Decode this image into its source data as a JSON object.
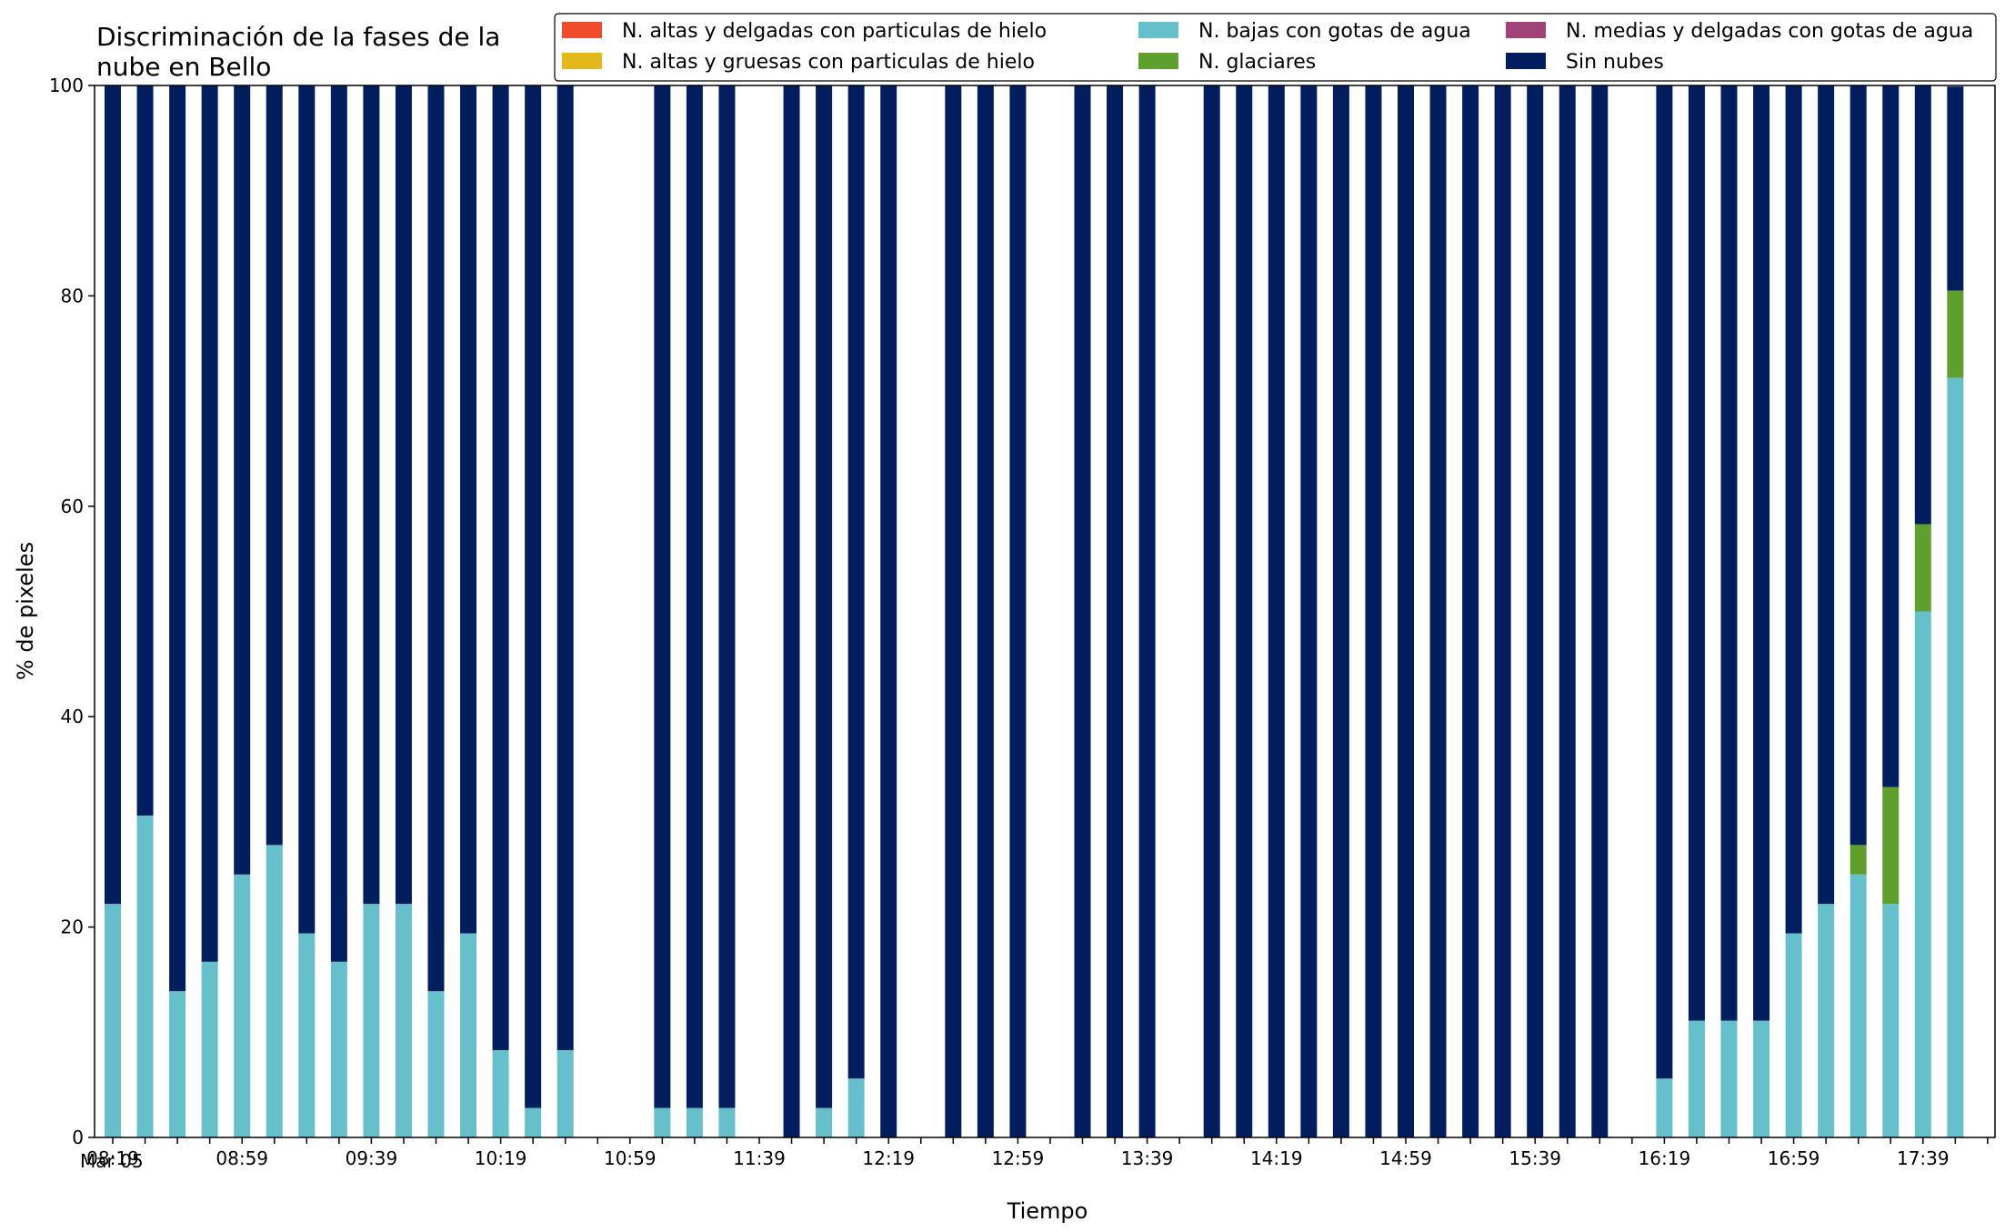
{
  "chart_data": {
    "type": "bar",
    "stacked": true,
    "title_line1": "Discriminación de la fases de la",
    "title_line2": "nube en Bello",
    "xlabel": "Tiempo",
    "ylabel": "% de pixeles",
    "ylim": [
      0,
      100
    ],
    "yticks": [
      0,
      20,
      40,
      60,
      80,
      100
    ],
    "x_start": "08:19",
    "x_step_minutes": 10,
    "date_label": "Mar 05",
    "x_tick_labels": [
      "08:19",
      "08:59",
      "09:39",
      "10:19",
      "10:59",
      "11:39",
      "12:19",
      "12:59",
      "13:39",
      "14:19",
      "14:59",
      "15:39",
      "16:19",
      "16:59",
      "17:39"
    ],
    "x": [
      "08:19",
      "08:29",
      "08:39",
      "08:49",
      "08:59",
      "09:09",
      "09:19",
      "09:29",
      "09:39",
      "09:49",
      "09:59",
      "10:09",
      "10:19",
      "10:29",
      "10:39",
      "10:49",
      "10:59",
      "11:09",
      "11:19",
      "11:29",
      "11:39",
      "11:49",
      "11:59",
      "12:09",
      "12:19",
      "12:29",
      "12:39",
      "12:49",
      "12:59",
      "13:09",
      "13:19",
      "13:29",
      "13:39",
      "13:49",
      "13:59",
      "14:09",
      "14:19",
      "14:29",
      "14:39",
      "14:49",
      "14:59",
      "15:09",
      "15:19",
      "15:29",
      "15:39",
      "15:49",
      "15:59",
      "16:09",
      "16:19",
      "16:29",
      "16:39",
      "16:49",
      "16:59",
      "17:09",
      "17:19",
      "17:29",
      "17:39",
      "17:49"
    ],
    "series": [
      {
        "name": "N. altas y delgadas con particulas de hielo",
        "color": "#ee4c2c",
        "values": [
          0,
          0,
          0,
          0,
          0,
          0,
          0,
          0,
          0,
          0,
          0,
          0,
          0,
          0,
          0,
          null,
          null,
          0,
          0,
          0,
          null,
          0,
          0,
          0,
          0,
          null,
          0,
          0,
          0,
          null,
          0,
          0,
          0,
          null,
          0,
          0,
          0,
          0,
          0,
          0,
          0,
          0,
          0,
          0,
          0,
          0,
          0,
          null,
          0,
          0,
          0,
          0,
          0,
          0,
          0,
          0,
          0,
          0
        ]
      },
      {
        "name": "N. altas y gruesas con particulas de hielo",
        "color": "#e5b81a",
        "values": [
          0,
          0,
          0,
          0,
          0,
          0,
          0,
          0,
          0,
          0,
          0,
          0,
          0,
          0,
          0,
          null,
          null,
          0,
          0,
          0,
          null,
          0,
          0,
          0,
          0,
          null,
          0,
          0,
          0,
          null,
          0,
          0,
          0,
          null,
          0,
          0,
          0,
          0,
          0,
          0,
          0,
          0,
          0,
          0,
          0,
          0,
          0,
          null,
          0,
          0,
          0,
          0,
          0,
          0,
          0,
          0,
          0,
          0
        ]
      },
      {
        "name": "N. bajas con gotas de agua",
        "color": "#66c0cb",
        "values": [
          22.2,
          30.6,
          13.9,
          16.7,
          25.0,
          27.8,
          19.4,
          16.7,
          22.2,
          22.2,
          13.9,
          19.4,
          8.3,
          2.8,
          8.3,
          null,
          null,
          2.8,
          2.8,
          2.8,
          null,
          0,
          2.8,
          5.6,
          0,
          null,
          0,
          0,
          0,
          null,
          0,
          0,
          0,
          null,
          0,
          0,
          0,
          0,
          0,
          0,
          0,
          0,
          0,
          0,
          0,
          0,
          0,
          null,
          5.6,
          11.1,
          11.1,
          11.1,
          19.4,
          22.2,
          25.0,
          22.2,
          50.0,
          72.2
        ]
      },
      {
        "name": "N. glaciares",
        "color": "#5f9f2e",
        "values": [
          0,
          0,
          0,
          0,
          0,
          0,
          0,
          0,
          0,
          0,
          0,
          0,
          0,
          0,
          0,
          null,
          null,
          0,
          0,
          0,
          null,
          0,
          0,
          0,
          0,
          null,
          0,
          0,
          0,
          null,
          0,
          0,
          0,
          null,
          0,
          0,
          0,
          0,
          0,
          0,
          0,
          0,
          0,
          0,
          0,
          0,
          0,
          null,
          0,
          0,
          0,
          0,
          0,
          0,
          2.8,
          11.1,
          8.3,
          8.3
        ]
      },
      {
        "name": "N. medias y delgadas con gotas de agua",
        "color": "#a2427b",
        "values": [
          0,
          0,
          0,
          0,
          0,
          0,
          0,
          0,
          0,
          0,
          0,
          0,
          0,
          0,
          0,
          null,
          null,
          0,
          0,
          0,
          null,
          0,
          0,
          0,
          0,
          null,
          0,
          0,
          0,
          null,
          0,
          0,
          0,
          null,
          0,
          0,
          0,
          0,
          0,
          0,
          0,
          0,
          0,
          0,
          0,
          0,
          0,
          null,
          0,
          0,
          0,
          0,
          0,
          0,
          0,
          0,
          0,
          0
        ]
      },
      {
        "name": "Sin nubes",
        "color": "#021e5e",
        "values": [
          77.8,
          69.4,
          86.1,
          83.3,
          75.0,
          72.2,
          80.6,
          83.3,
          77.8,
          77.8,
          86.1,
          80.6,
          91.7,
          97.2,
          91.7,
          null,
          null,
          97.2,
          97.2,
          97.2,
          null,
          100,
          97.2,
          94.4,
          100,
          null,
          100,
          100,
          100,
          null,
          100,
          100,
          100,
          null,
          100,
          100,
          100,
          100,
          100,
          100,
          100,
          100,
          100,
          100,
          100,
          100,
          100,
          null,
          94.4,
          88.9,
          88.9,
          88.9,
          80.6,
          77.8,
          72.2,
          66.7,
          41.7,
          19.4
        ]
      }
    ],
    "legend": {
      "position": "top-right",
      "columns": 3
    },
    "grid": false
  }
}
